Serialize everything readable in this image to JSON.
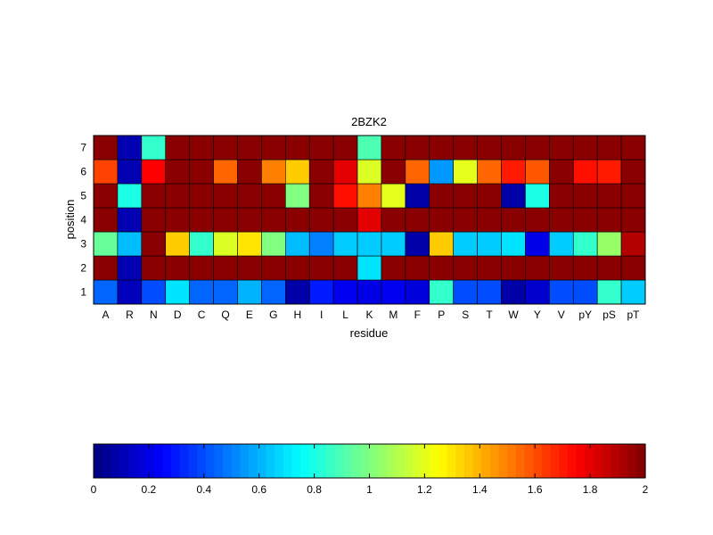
{
  "chart_data": {
    "type": "heatmap",
    "title": "2BZK2",
    "xlabel": "residue",
    "ylabel": "position",
    "x_categories": [
      "A",
      "R",
      "N",
      "D",
      "C",
      "Q",
      "E",
      "G",
      "H",
      "I",
      "L",
      "K",
      "M",
      "F",
      "P",
      "S",
      "T",
      "W",
      "Y",
      "V",
      "pY",
      "pS",
      "pT"
    ],
    "y_categories": [
      "1",
      "2",
      "3",
      "4",
      "5",
      "6",
      "7"
    ],
    "values": [
      [
        0.45,
        0.12,
        0.4,
        0.7,
        0.45,
        0.45,
        0.6,
        0.45,
        0.08,
        0.3,
        0.22,
        0.2,
        0.22,
        0.18,
        0.85,
        0.4,
        0.4,
        0.08,
        0.15,
        0.4,
        0.4,
        0.85,
        0.65
      ],
      [
        1.98,
        0.1,
        1.98,
        1.98,
        1.98,
        1.98,
        1.98,
        1.98,
        1.98,
        1.98,
        1.98,
        0.7,
        1.98,
        1.98,
        1.98,
        1.98,
        1.98,
        1.98,
        1.98,
        1.98,
        1.98,
        1.98,
        1.98
      ],
      [
        0.95,
        0.62,
        1.98,
        1.35,
        0.85,
        1.18,
        1.3,
        1.0,
        0.62,
        0.5,
        0.65,
        0.65,
        0.65,
        0.08,
        1.35,
        0.65,
        0.65,
        0.7,
        0.2,
        0.65,
        0.85,
        1.05,
        1.9
      ],
      [
        1.98,
        0.1,
        1.98,
        1.98,
        1.98,
        1.98,
        1.98,
        1.98,
        1.98,
        1.98,
        1.98,
        1.8,
        1.98,
        1.98,
        1.98,
        1.98,
        1.98,
        1.98,
        1.98,
        1.98,
        1.98,
        1.98,
        1.98
      ],
      [
        1.98,
        0.8,
        1.98,
        1.98,
        1.98,
        1.98,
        1.98,
        1.98,
        1.0,
        1.98,
        1.72,
        1.5,
        1.2,
        0.08,
        1.98,
        1.98,
        1.98,
        0.08,
        0.8,
        1.98,
        1.98,
        1.98,
        1.98
      ],
      [
        1.62,
        0.1,
        1.75,
        1.98,
        1.98,
        1.55,
        1.98,
        1.5,
        1.35,
        1.98,
        1.8,
        1.18,
        1.98,
        1.55,
        0.55,
        1.2,
        1.55,
        1.7,
        1.58,
        1.98,
        1.72,
        1.7,
        1.98
      ],
      [
        1.98,
        0.1,
        0.85,
        1.98,
        1.98,
        1.98,
        1.98,
        1.98,
        1.98,
        1.98,
        1.98,
        0.9,
        1.98,
        1.98,
        1.98,
        1.98,
        1.98,
        1.98,
        1.98,
        1.98,
        1.98,
        1.98,
        1.98
      ]
    ],
    "clim": [
      0,
      2
    ],
    "colormap": "jet",
    "colorbar": {
      "orientation": "horizontal",
      "placement": "bottom",
      "tick_labels": [
        "0",
        "0.2",
        "0.4",
        "0.6",
        "0.8",
        "1",
        "1.2",
        "1.4",
        "1.6",
        "1.8",
        "2"
      ]
    }
  }
}
